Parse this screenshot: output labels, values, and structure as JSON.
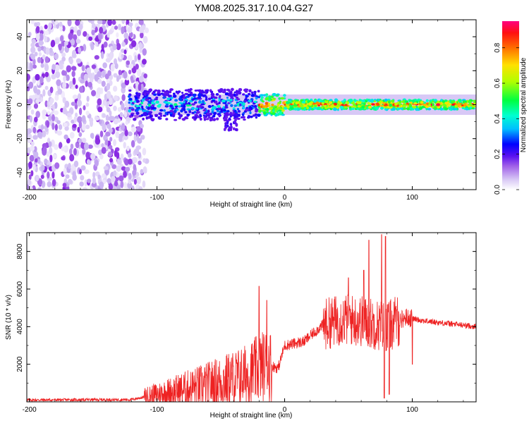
{
  "title": "YM08.2025.317.10.04.G27",
  "chart_data": [
    {
      "type": "heatmap",
      "name": "spectrogram",
      "xlabel": "Height of straight line (km)",
      "ylabel": "Frequency (Hz)",
      "xlim": [
        -202,
        150
      ],
      "ylim": [
        -50,
        50
      ],
      "xticks": [
        -200,
        -100,
        0,
        100
      ],
      "yticks": [
        -40,
        -20,
        0,
        20,
        40
      ],
      "colorbar": {
        "label": "Normalized spectral amplitude",
        "range": [
          0.0,
          0.95
        ],
        "ticks": [
          0.0,
          0.2,
          0.4,
          0.6,
          0.8
        ],
        "colormap": [
          "#ffffff",
          "#c9b3f2",
          "#8a2be2",
          "#5a10f0",
          "#0000ff",
          "#00bfff",
          "#00ffd0",
          "#00ff40",
          "#b0ff00",
          "#ffe000",
          "#ff7000",
          "#ff1010",
          "#ff0080"
        ]
      },
      "features": [
        {
          "region": "noise",
          "x_range": [
            -202,
            -108
          ],
          "f_range": [
            -50,
            50
          ],
          "level": 0.15
        },
        {
          "region": "signal",
          "x_range": [
            -122,
            150
          ],
          "center_hz": 0,
          "halfwidth_hz": 4,
          "level_range": [
            0.3,
            0.9
          ]
        },
        {
          "region": "branch",
          "x_range": [
            -47,
            -37
          ],
          "f_range": [
            -15,
            -5
          ],
          "level": 0.2
        }
      ]
    },
    {
      "type": "line",
      "name": "snr",
      "xlabel": "Height of straight line (km)",
      "ylabel": "SNR (10 * v/v)",
      "xlim": [
        -202,
        150
      ],
      "ylim": [
        0,
        9000
      ],
      "xticks": [
        -200,
        -100,
        0,
        100
      ],
      "yticks": [
        2000,
        4000,
        6000,
        8000
      ],
      "color": "#ee2222",
      "trend": [
        {
          "x": -202,
          "y": 100
        },
        {
          "x": -120,
          "y": 120
        },
        {
          "x": -100,
          "y": 400
        },
        {
          "x": -60,
          "y": 900
        },
        {
          "x": -30,
          "y": 1400
        },
        {
          "x": -15,
          "y": 2000
        },
        {
          "x": -5,
          "y": 1800
        },
        {
          "x": 0,
          "y": 3000
        },
        {
          "x": 15,
          "y": 3200
        },
        {
          "x": 30,
          "y": 4100
        },
        {
          "x": 45,
          "y": 4400
        },
        {
          "x": 60,
          "y": 4300
        },
        {
          "x": 80,
          "y": 4000
        },
        {
          "x": 95,
          "y": 4500
        },
        {
          "x": 110,
          "y": 4300
        },
        {
          "x": 150,
          "y": 4000
        }
      ],
      "spikes": [
        {
          "x": -20,
          "y": 6150
        },
        {
          "x": -14,
          "y": 5400
        },
        {
          "x": 50,
          "y": 6600
        },
        {
          "x": 62,
          "y": 7000
        },
        {
          "x": 66,
          "y": 8600
        },
        {
          "x": 76,
          "y": 8900
        },
        {
          "x": 79,
          "y": 8800
        },
        {
          "x": 88,
          "y": 4900
        }
      ],
      "dips": [
        {
          "x": 78,
          "y": 200
        },
        {
          "x": 82,
          "y": 400
        },
        {
          "x": 100,
          "y": 2000
        }
      ]
    }
  ]
}
